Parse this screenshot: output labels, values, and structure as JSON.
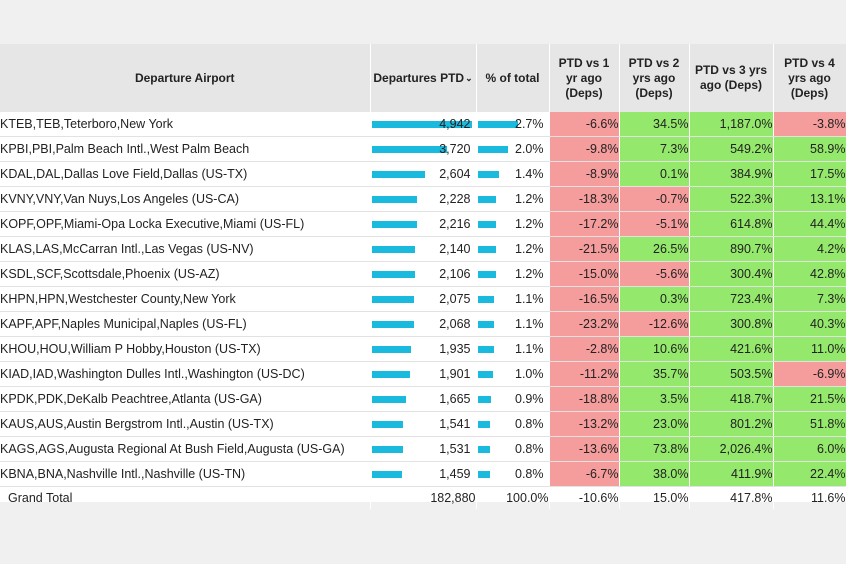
{
  "headers": {
    "airport": "Departure Airport",
    "departures": "Departures PTD",
    "pct_total": "% of total",
    "vs1": "PTD vs 1 yr ago (Deps)",
    "vs2": "PTD vs 2 yrs ago (Deps)",
    "vs3": "PTD vs 3 yrs ago (Deps)",
    "vs4": "PTD vs 4 yrs ago (Deps)",
    "sort_icon": "chevron-down-icon"
  },
  "colors": {
    "positive": "#94e86b",
    "negative": "#f59c9c",
    "bar": "#1ab9de"
  },
  "max_departures": 4942,
  "max_pct": 2.7,
  "rows": [
    {
      "airport": "KTEB,TEB,Teterboro,New York",
      "departures": "4,942",
      "dep_value": 4942,
      "pct": "2.7%",
      "pct_value": 2.7,
      "vs1": "-6.6%",
      "vs2": "34.5%",
      "vs3": "1,187.0%",
      "vs4": "-3.8%"
    },
    {
      "airport": "KPBI,PBI,Palm Beach Intl.,West Palm Beach",
      "departures": "3,720",
      "dep_value": 3720,
      "pct": "2.0%",
      "pct_value": 2.0,
      "vs1": "-9.8%",
      "vs2": "7.3%",
      "vs3": "549.2%",
      "vs4": "58.9%"
    },
    {
      "airport": "KDAL,DAL,Dallas Love Field,Dallas (US-TX)",
      "departures": "2,604",
      "dep_value": 2604,
      "pct": "1.4%",
      "pct_value": 1.4,
      "vs1": "-8.9%",
      "vs2": "0.1%",
      "vs3": "384.9%",
      "vs4": "17.5%"
    },
    {
      "airport": "KVNY,VNY,Van Nuys,Los Angeles (US-CA)",
      "departures": "2,228",
      "dep_value": 2228,
      "pct": "1.2%",
      "pct_value": 1.2,
      "vs1": "-18.3%",
      "vs2": "-0.7%",
      "vs3": "522.3%",
      "vs4": "13.1%"
    },
    {
      "airport": "KOPF,OPF,Miami-Opa Locka Executive,Miami (US-FL)",
      "departures": "2,216",
      "dep_value": 2216,
      "pct": "1.2%",
      "pct_value": 1.2,
      "vs1": "-17.2%",
      "vs2": "-5.1%",
      "vs3": "614.8%",
      "vs4": "44.4%"
    },
    {
      "airport": "KLAS,LAS,McCarran Intl.,Las Vegas (US-NV)",
      "departures": "2,140",
      "dep_value": 2140,
      "pct": "1.2%",
      "pct_value": 1.2,
      "vs1": "-21.5%",
      "vs2": "26.5%",
      "vs3": "890.7%",
      "vs4": "4.2%"
    },
    {
      "airport": "KSDL,SCF,Scottsdale,Phoenix (US-AZ)",
      "departures": "2,106",
      "dep_value": 2106,
      "pct": "1.2%",
      "pct_value": 1.2,
      "vs1": "-15.0%",
      "vs2": "-5.6%",
      "vs3": "300.4%",
      "vs4": "42.8%"
    },
    {
      "airport": "KHPN,HPN,Westchester County,New York",
      "departures": "2,075",
      "dep_value": 2075,
      "pct": "1.1%",
      "pct_value": 1.1,
      "vs1": "-16.5%",
      "vs2": "0.3%",
      "vs3": "723.4%",
      "vs4": "7.3%"
    },
    {
      "airport": "KAPF,APF,Naples Municipal,Naples (US-FL)",
      "departures": "2,068",
      "dep_value": 2068,
      "pct": "1.1%",
      "pct_value": 1.1,
      "vs1": "-23.2%",
      "vs2": "-12.6%",
      "vs3": "300.8%",
      "vs4": "40.3%"
    },
    {
      "airport": "KHOU,HOU,William P Hobby,Houston (US-TX)",
      "departures": "1,935",
      "dep_value": 1935,
      "pct": "1.1%",
      "pct_value": 1.1,
      "vs1": "-2.8%",
      "vs2": "10.6%",
      "vs3": "421.6%",
      "vs4": "11.0%"
    },
    {
      "airport": "KIAD,IAD,Washington Dulles Intl.,Washington (US-DC)",
      "departures": "1,901",
      "dep_value": 1901,
      "pct": "1.0%",
      "pct_value": 1.0,
      "vs1": "-11.2%",
      "vs2": "35.7%",
      "vs3": "503.5%",
      "vs4": "-6.9%"
    },
    {
      "airport": "KPDK,PDK,DeKalb Peachtree,Atlanta (US-GA)",
      "departures": "1,665",
      "dep_value": 1665,
      "pct": "0.9%",
      "pct_value": 0.9,
      "vs1": "-18.8%",
      "vs2": "3.5%",
      "vs3": "418.7%",
      "vs4": "21.5%"
    },
    {
      "airport": "KAUS,AUS,Austin Bergstrom Intl.,Austin (US-TX)",
      "departures": "1,541",
      "dep_value": 1541,
      "pct": "0.8%",
      "pct_value": 0.8,
      "vs1": "-13.2%",
      "vs2": "23.0%",
      "vs3": "801.2%",
      "vs4": "51.8%"
    },
    {
      "airport": "KAGS,AGS,Augusta Regional At Bush Field,Augusta (US-GA)",
      "departures": "1,531",
      "dep_value": 1531,
      "pct": "0.8%",
      "pct_value": 0.8,
      "vs1": "-13.6%",
      "vs2": "73.8%",
      "vs3": "2,026.4%",
      "vs4": "6.0%"
    },
    {
      "airport": "KBNA,BNA,Nashville Intl.,Nashville (US-TN)",
      "departures": "1,459",
      "dep_value": 1459,
      "pct": "0.8%",
      "pct_value": 0.8,
      "vs1": "-6.7%",
      "vs2": "38.0%",
      "vs3": "411.9%",
      "vs4": "22.4%"
    }
  ],
  "total": {
    "label": "Grand Total",
    "departures": "182,880",
    "pct": "100.0%",
    "vs1": "-10.6%",
    "vs2": "15.0%",
    "vs3": "417.8%",
    "vs4": "11.6%"
  }
}
